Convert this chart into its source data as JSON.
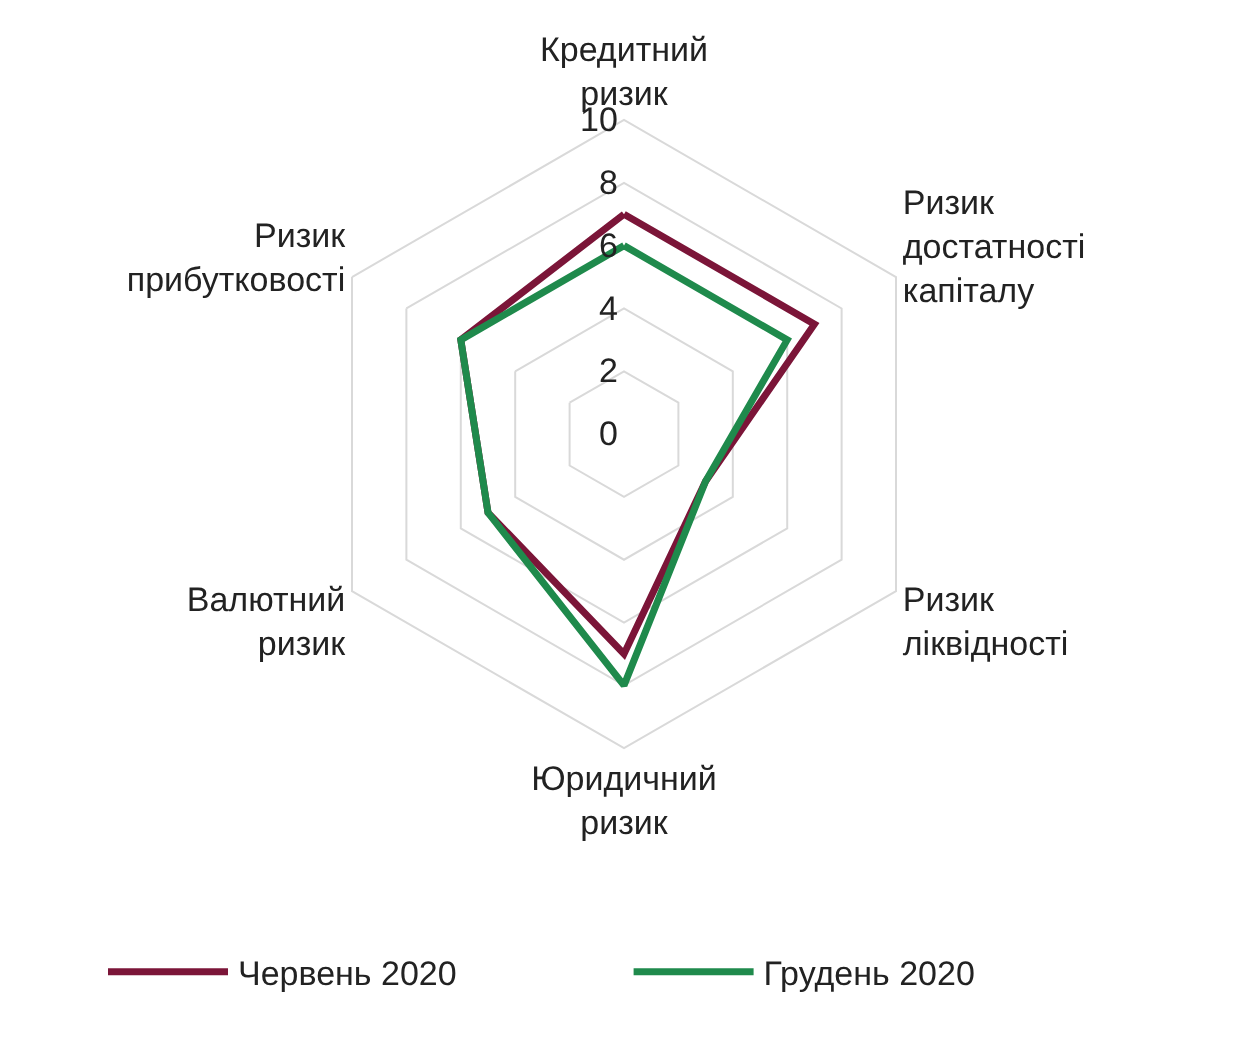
{
  "chart_data": {
    "type": "radar",
    "categories": [
      "Кредитний\nризик",
      "Ризик\nдостатності\nкапіталу",
      "Ризик\nліквідності",
      "Юридичний\nризик",
      "Валютний\nризик",
      "Ризик\nприбутковості"
    ],
    "series": [
      {
        "name": "Червень 2020",
        "color": "#7b1538",
        "values": [
          7,
          7,
          3,
          7,
          5,
          6
        ]
      },
      {
        "name": "Грудень 2020",
        "color": "#1f8a4c",
        "values": [
          6,
          6,
          3,
          8,
          5,
          6
        ]
      }
    ],
    "ylim": [
      0,
      10
    ],
    "yticks": [
      0,
      2,
      4,
      6,
      8,
      10
    ],
    "grid": true,
    "legend": "bottom",
    "marker": "none",
    "line_style": "solid"
  }
}
